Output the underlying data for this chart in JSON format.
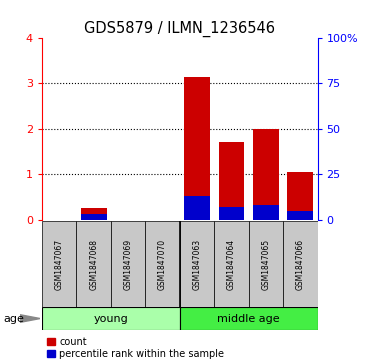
{
  "title": "GDS5879 / ILMN_1236546",
  "samples": [
    "GSM1847067",
    "GSM1847068",
    "GSM1847069",
    "GSM1847070",
    "GSM1847063",
    "GSM1847064",
    "GSM1847065",
    "GSM1847066"
  ],
  "groups": [
    {
      "name": "young",
      "color": "#AAFFAA",
      "start": 0,
      "end": 3
    },
    {
      "name": "middle age",
      "color": "#44EE44",
      "start": 4,
      "end": 7
    }
  ],
  "count_values": [
    0.0,
    0.25,
    0.0,
    0.0,
    3.15,
    1.7,
    2.0,
    1.05
  ],
  "percentile_values": [
    0.0,
    0.12,
    0.0,
    0.0,
    0.52,
    0.28,
    0.32,
    0.18
  ],
  "count_color": "#CC0000",
  "percentile_color": "#0000CC",
  "left_ylim": [
    0,
    4
  ],
  "right_ylim": [
    0,
    100
  ],
  "left_yticks": [
    0,
    1,
    2,
    3,
    4
  ],
  "right_yticks": [
    0,
    25,
    50,
    75,
    100
  ],
  "right_yticklabels": [
    "0",
    "25",
    "50",
    "75",
    "100%"
  ],
  "bar_width": 0.75,
  "sample_bg_color": "#C8C8C8",
  "plot_bg_color": "#FFFFFF",
  "age_label": "age",
  "legend_count": "count",
  "legend_percentile": "percentile rank within the sample",
  "n_samples": 8,
  "sep_after": 3
}
